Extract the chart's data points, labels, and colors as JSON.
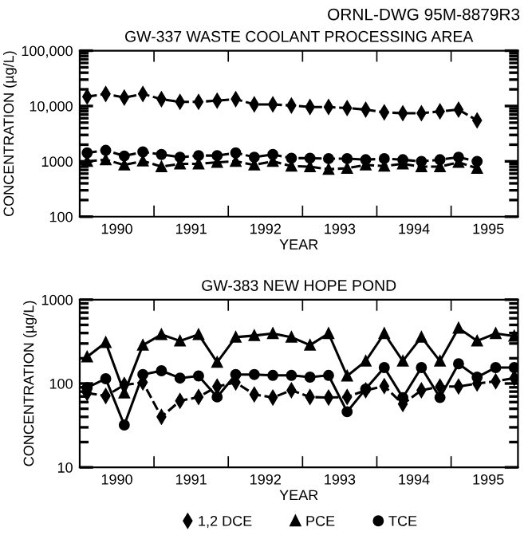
{
  "chart_data": [
    {
      "type": "line",
      "title": "GW-337 WASTE COOLANT PROCESSING AREA",
      "xlabel": "YEAR",
      "ylabel": "CONCENTRATION (µg/L)",
      "annotations": [
        "ORNL-DWG 95M-8879R3"
      ],
      "log": "y",
      "xlim": [
        1990.0,
        1995.9
      ],
      "ylim": [
        100,
        100000
      ],
      "xticks": [
        {
          "value": 1990.5,
          "label": "1990"
        },
        {
          "value": 1991,
          "label": null
        },
        {
          "value": 1991.5,
          "label": "1991"
        },
        {
          "value": 1992,
          "label": null
        },
        {
          "value": 1992.5,
          "label": "1992"
        },
        {
          "value": 1993,
          "label": null
        },
        {
          "value": 1993.5,
          "label": "1993"
        },
        {
          "value": 1994,
          "label": null
        },
        {
          "value": 1994.5,
          "label": "1994"
        },
        {
          "value": 1995,
          "label": null
        },
        {
          "value": 1995.5,
          "label": "1995"
        }
      ],
      "yticks": [
        100,
        1000,
        {
          "value": 10000,
          "label": "10,000"
        },
        {
          "value": 100000,
          "label": "100,000"
        }
      ],
      "x": [
        1990.1,
        1990.35,
        1990.6,
        1990.85,
        1991.1,
        1991.35,
        1991.6,
        1991.85,
        1992.1,
        1992.35,
        1992.6,
        1992.85,
        1993.1,
        1993.35,
        1993.6,
        1993.85,
        1994.1,
        1994.35,
        1994.6,
        1994.85,
        1995.1,
        1995.35
      ],
      "grid": false,
      "legend": false,
      "series": [
        {
          "color": "#000000",
          "marker": "diamond",
          "line_style": "dashed",
          "values": [
            14800,
            16500,
            14200,
            16500,
            13300,
            11900,
            11900,
            12500,
            13300,
            10700,
            10700,
            10200,
            9600,
            9600,
            9200,
            8600,
            7700,
            7400,
            7400,
            8000,
            8600,
            5500
          ]
        },
        {
          "color": "#000000",
          "marker": "triangle",
          "line_style": "dashed",
          "values": [
            1000,
            1070,
            860,
            1020,
            800,
            900,
            900,
            960,
            1000,
            860,
            1000,
            820,
            800,
            720,
            750,
            860,
            820,
            900,
            800,
            800,
            960,
            750
          ]
        },
        {
          "color": "#000000",
          "marker": "circle",
          "line_style": "dashed",
          "values": [
            1420,
            1580,
            1250,
            1480,
            1330,
            1190,
            1270,
            1270,
            1420,
            1190,
            1330,
            1140,
            1140,
            1120,
            1120,
            1070,
            1120,
            1070,
            1000,
            1070,
            1190,
            1000
          ]
        }
      ]
    },
    {
      "type": "line",
      "title": "GW-383 NEW HOPE POND",
      "xlabel": "YEAR",
      "ylabel": "CONCENTRATION (µg/L)",
      "log": "y",
      "xlim": [
        1990.0,
        1995.9
      ],
      "ylim": [
        10,
        1000
      ],
      "xticks": [
        {
          "value": 1990.5,
          "label": "1990"
        },
        {
          "value": 1991,
          "label": null
        },
        {
          "value": 1991.5,
          "label": "1991"
        },
        {
          "value": 1992,
          "label": null
        },
        {
          "value": 1992.5,
          "label": "1992"
        },
        {
          "value": 1993,
          "label": null
        },
        {
          "value": 1993.5,
          "label": "1993"
        },
        {
          "value": 1994,
          "label": null
        },
        {
          "value": 1994.5,
          "label": "1994"
        },
        {
          "value": 1995,
          "label": null
        },
        {
          "value": 1995.5,
          "label": "1995"
        }
      ],
      "yticks": [
        10,
        100,
        1000
      ],
      "x": [
        1990.1,
        1990.35,
        1990.6,
        1990.85,
        1991.1,
        1991.35,
        1991.6,
        1991.85,
        1992.1,
        1992.35,
        1992.6,
        1992.85,
        1993.1,
        1993.35,
        1993.6,
        1993.85,
        1994.1,
        1994.35,
        1994.6,
        1994.85,
        1995.1,
        1995.35,
        1995.6,
        1995.85
      ],
      "grid": false,
      "legend": "bottom",
      "series": [
        {
          "name": "1,2 DCE",
          "color": "#000000",
          "marker": "diamond",
          "line_style": "dashed",
          "values": [
            77,
            71,
            96,
            103,
            40,
            62,
            69,
            92,
            103,
            74,
            68,
            83,
            69,
            68,
            69,
            83,
            93,
            57,
            83,
            92,
            92,
            100,
            106,
            116
          ]
        },
        {
          "name": "PCE",
          "color": "#000000",
          "marker": "triangle",
          "line_style": "solid",
          "values": [
            208,
            309,
            77,
            287,
            384,
            322,
            384,
            179,
            357,
            373,
            395,
            357,
            287,
            395,
            123,
            185,
            395,
            185,
            357,
            185,
            458,
            322,
            395,
            368
          ]
        },
        {
          "name": "TCE",
          "color": "#000000",
          "marker": "circle",
          "line_style": "solid",
          "values": [
            89,
            114,
            32,
            128,
            142,
            116,
            123,
            69,
            128,
            128,
            125,
            125,
            119,
            125,
            46,
            86,
            155,
            68,
            155,
            68,
            172,
            119,
            155,
            155
          ]
        }
      ]
    }
  ]
}
